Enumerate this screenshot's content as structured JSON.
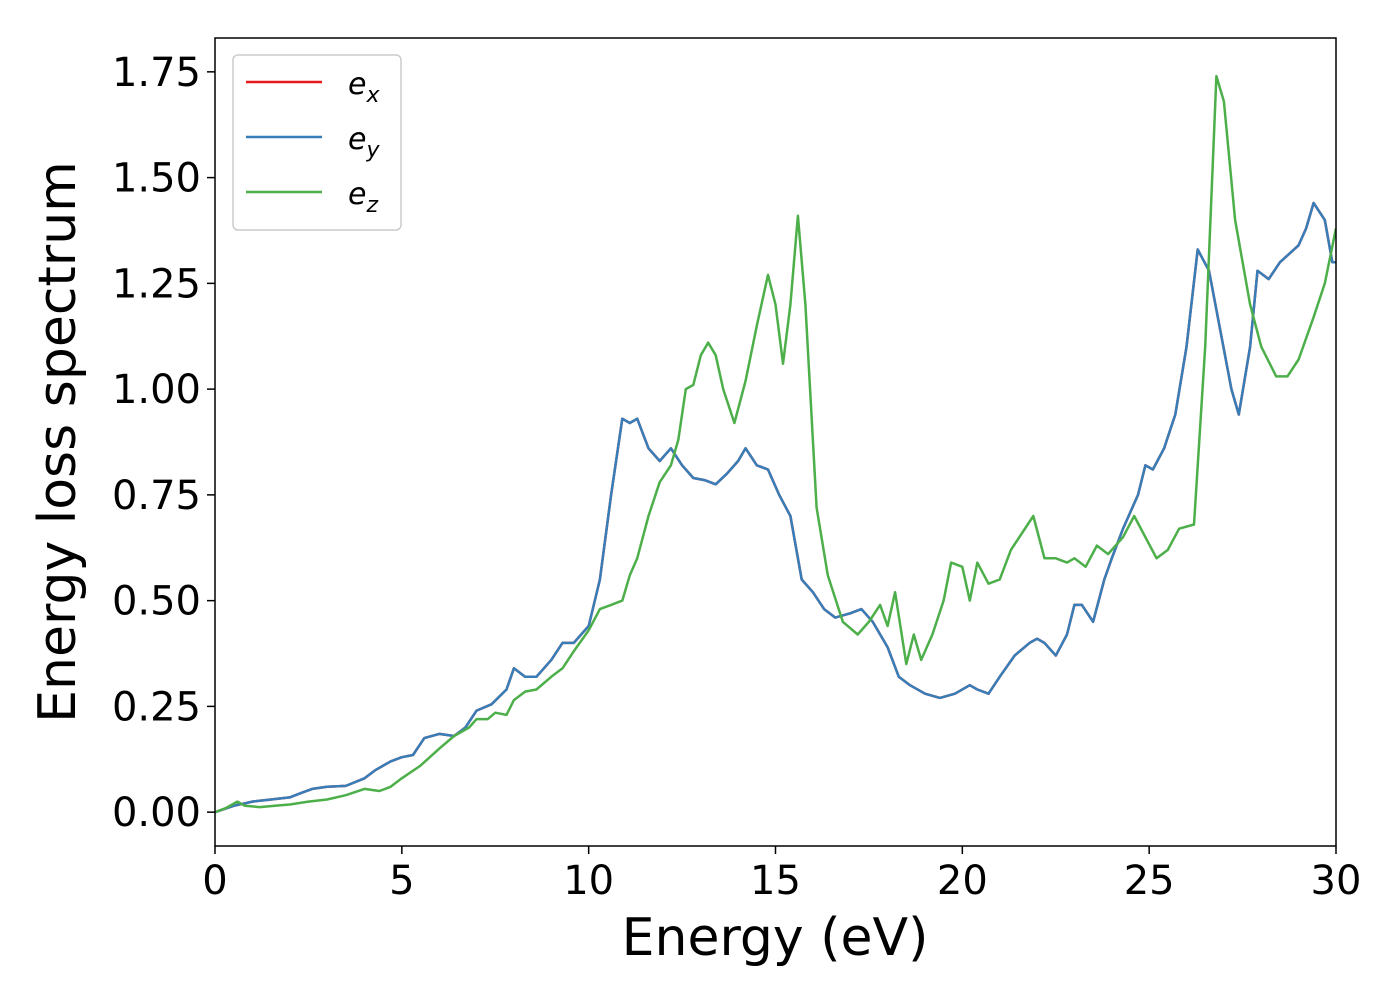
{
  "chart_data": {
    "type": "line",
    "xlabel": "Energy (eV)",
    "ylabel": "Energy loss spectrum",
    "xlim": [
      0,
      30
    ],
    "ylim": [
      -0.08,
      1.83
    ],
    "xticks": [
      0,
      5,
      10,
      15,
      20,
      25,
      30
    ],
    "yticks": [
      0.0,
      0.25,
      0.5,
      0.75,
      1.0,
      1.25,
      1.5,
      1.75
    ],
    "xtick_labels": [
      "0",
      "5",
      "10",
      "15",
      "20",
      "25",
      "30"
    ],
    "ytick_labels": [
      "0.00",
      "0.25",
      "0.50",
      "0.75",
      "1.00",
      "1.25",
      "1.50",
      "1.75"
    ],
    "grid": false,
    "legend": {
      "placement": "top-left",
      "entries": [
        {
          "base": "e",
          "sub": "x",
          "color": "#e41a1c"
        },
        {
          "base": "e",
          "sub": "y",
          "color": "#377eb8"
        },
        {
          "base": "e",
          "sub": "z",
          "color": "#4daf4a"
        }
      ]
    },
    "series": [
      {
        "name": "e_x",
        "color": "#e41a1c",
        "points": [
          [
            0,
            0
          ],
          [
            0.5,
            0.015
          ],
          [
            1,
            0.025
          ],
          [
            1.5,
            0.03
          ],
          [
            2,
            0.035
          ],
          [
            2.3,
            0.045
          ],
          [
            2.6,
            0.055
          ],
          [
            3,
            0.06
          ],
          [
            3.5,
            0.062
          ],
          [
            4,
            0.08
          ],
          [
            4.3,
            0.1
          ],
          [
            4.7,
            0.12
          ],
          [
            5,
            0.13
          ],
          [
            5.3,
            0.135
          ],
          [
            5.6,
            0.175
          ],
          [
            6,
            0.185
          ],
          [
            6.4,
            0.18
          ],
          [
            6.7,
            0.2
          ],
          [
            7,
            0.24
          ],
          [
            7.4,
            0.255
          ],
          [
            7.8,
            0.29
          ],
          [
            8,
            0.34
          ],
          [
            8.3,
            0.32
          ],
          [
            8.6,
            0.32
          ],
          [
            9,
            0.36
          ],
          [
            9.3,
            0.4
          ],
          [
            9.6,
            0.4
          ],
          [
            10,
            0.44
          ],
          [
            10.3,
            0.55
          ],
          [
            10.6,
            0.75
          ],
          [
            10.9,
            0.93
          ],
          [
            11.1,
            0.92
          ],
          [
            11.3,
            0.93
          ],
          [
            11.6,
            0.86
          ],
          [
            11.9,
            0.83
          ],
          [
            12.2,
            0.86
          ],
          [
            12.5,
            0.82
          ],
          [
            12.8,
            0.79
          ],
          [
            13.1,
            0.785
          ],
          [
            13.4,
            0.775
          ],
          [
            13.7,
            0.8
          ],
          [
            14,
            0.83
          ],
          [
            14.2,
            0.86
          ],
          [
            14.5,
            0.82
          ],
          [
            14.8,
            0.81
          ],
          [
            15.1,
            0.75
          ],
          [
            15.4,
            0.7
          ],
          [
            15.7,
            0.55
          ],
          [
            16,
            0.52
          ],
          [
            16.3,
            0.48
          ],
          [
            16.6,
            0.46
          ],
          [
            17,
            0.47
          ],
          [
            17.3,
            0.48
          ],
          [
            17.6,
            0.45
          ],
          [
            18,
            0.39
          ],
          [
            18.3,
            0.32
          ],
          [
            18.6,
            0.3
          ],
          [
            19,
            0.28
          ],
          [
            19.4,
            0.27
          ],
          [
            19.8,
            0.28
          ],
          [
            20.2,
            0.3
          ],
          [
            20.4,
            0.29
          ],
          [
            20.7,
            0.28
          ],
          [
            21,
            0.32
          ],
          [
            21.4,
            0.37
          ],
          [
            21.8,
            0.4
          ],
          [
            22,
            0.41
          ],
          [
            22.2,
            0.4
          ],
          [
            22.5,
            0.37
          ],
          [
            22.8,
            0.42
          ],
          [
            23,
            0.49
          ],
          [
            23.2,
            0.49
          ],
          [
            23.5,
            0.45
          ],
          [
            23.8,
            0.55
          ],
          [
            24,
            0.6
          ],
          [
            24.3,
            0.67
          ],
          [
            24.7,
            0.75
          ],
          [
            24.9,
            0.82
          ],
          [
            25.1,
            0.81
          ],
          [
            25.4,
            0.86
          ],
          [
            25.7,
            0.94
          ],
          [
            26,
            1.1
          ],
          [
            26.3,
            1.33
          ],
          [
            26.6,
            1.28
          ],
          [
            26.9,
            1.14
          ],
          [
            27.2,
            1.0
          ],
          [
            27.4,
            0.94
          ],
          [
            27.7,
            1.1
          ],
          [
            27.9,
            1.28
          ],
          [
            28.2,
            1.26
          ],
          [
            28.5,
            1.3
          ],
          [
            29,
            1.34
          ],
          [
            29.2,
            1.38
          ],
          [
            29.4,
            1.44
          ],
          [
            29.7,
            1.4
          ],
          [
            29.9,
            1.3
          ],
          [
            30,
            1.3
          ]
        ]
      },
      {
        "name": "e_y",
        "color": "#377eb8",
        "points": [
          [
            0,
            0
          ],
          [
            0.5,
            0.015
          ],
          [
            1,
            0.025
          ],
          [
            1.5,
            0.03
          ],
          [
            2,
            0.035
          ],
          [
            2.3,
            0.045
          ],
          [
            2.6,
            0.055
          ],
          [
            3,
            0.06
          ],
          [
            3.5,
            0.062
          ],
          [
            4,
            0.08
          ],
          [
            4.3,
            0.1
          ],
          [
            4.7,
            0.12
          ],
          [
            5,
            0.13
          ],
          [
            5.3,
            0.135
          ],
          [
            5.6,
            0.175
          ],
          [
            6,
            0.185
          ],
          [
            6.4,
            0.18
          ],
          [
            6.7,
            0.2
          ],
          [
            7,
            0.24
          ],
          [
            7.4,
            0.255
          ],
          [
            7.8,
            0.29
          ],
          [
            8,
            0.34
          ],
          [
            8.3,
            0.32
          ],
          [
            8.6,
            0.32
          ],
          [
            9,
            0.36
          ],
          [
            9.3,
            0.4
          ],
          [
            9.6,
            0.4
          ],
          [
            10,
            0.44
          ],
          [
            10.3,
            0.55
          ],
          [
            10.6,
            0.75
          ],
          [
            10.9,
            0.93
          ],
          [
            11.1,
            0.92
          ],
          [
            11.3,
            0.93
          ],
          [
            11.6,
            0.86
          ],
          [
            11.9,
            0.83
          ],
          [
            12.2,
            0.86
          ],
          [
            12.5,
            0.82
          ],
          [
            12.8,
            0.79
          ],
          [
            13.1,
            0.785
          ],
          [
            13.4,
            0.775
          ],
          [
            13.7,
            0.8
          ],
          [
            14,
            0.83
          ],
          [
            14.2,
            0.86
          ],
          [
            14.5,
            0.82
          ],
          [
            14.8,
            0.81
          ],
          [
            15.1,
            0.75
          ],
          [
            15.4,
            0.7
          ],
          [
            15.7,
            0.55
          ],
          [
            16,
            0.52
          ],
          [
            16.3,
            0.48
          ],
          [
            16.6,
            0.46
          ],
          [
            17,
            0.47
          ],
          [
            17.3,
            0.48
          ],
          [
            17.6,
            0.45
          ],
          [
            18,
            0.39
          ],
          [
            18.3,
            0.32
          ],
          [
            18.6,
            0.3
          ],
          [
            19,
            0.28
          ],
          [
            19.4,
            0.27
          ],
          [
            19.8,
            0.28
          ],
          [
            20.2,
            0.3
          ],
          [
            20.4,
            0.29
          ],
          [
            20.7,
            0.28
          ],
          [
            21,
            0.32
          ],
          [
            21.4,
            0.37
          ],
          [
            21.8,
            0.4
          ],
          [
            22,
            0.41
          ],
          [
            22.2,
            0.4
          ],
          [
            22.5,
            0.37
          ],
          [
            22.8,
            0.42
          ],
          [
            23,
            0.49
          ],
          [
            23.2,
            0.49
          ],
          [
            23.5,
            0.45
          ],
          [
            23.8,
            0.55
          ],
          [
            24,
            0.6
          ],
          [
            24.3,
            0.67
          ],
          [
            24.7,
            0.75
          ],
          [
            24.9,
            0.82
          ],
          [
            25.1,
            0.81
          ],
          [
            25.4,
            0.86
          ],
          [
            25.7,
            0.94
          ],
          [
            26,
            1.1
          ],
          [
            26.3,
            1.33
          ],
          [
            26.6,
            1.28
          ],
          [
            26.9,
            1.14
          ],
          [
            27.2,
            1.0
          ],
          [
            27.4,
            0.94
          ],
          [
            27.7,
            1.1
          ],
          [
            27.9,
            1.28
          ],
          [
            28.2,
            1.26
          ],
          [
            28.5,
            1.3
          ],
          [
            29,
            1.34
          ],
          [
            29.2,
            1.38
          ],
          [
            29.4,
            1.44
          ],
          [
            29.7,
            1.4
          ],
          [
            29.9,
            1.3
          ],
          [
            30,
            1.3
          ]
        ]
      },
      {
        "name": "e_z",
        "color": "#4daf4a",
        "points": [
          [
            0,
            0
          ],
          [
            0.3,
            0.01
          ],
          [
            0.6,
            0.025
          ],
          [
            0.8,
            0.015
          ],
          [
            1.2,
            0.012
          ],
          [
            1.6,
            0.015
          ],
          [
            2,
            0.018
          ],
          [
            2.5,
            0.025
          ],
          [
            3,
            0.03
          ],
          [
            3.5,
            0.04
          ],
          [
            4,
            0.055
          ],
          [
            4.4,
            0.05
          ],
          [
            4.7,
            0.06
          ],
          [
            5,
            0.08
          ],
          [
            5.5,
            0.11
          ],
          [
            6,
            0.15
          ],
          [
            6.4,
            0.18
          ],
          [
            6.8,
            0.2
          ],
          [
            7,
            0.22
          ],
          [
            7.3,
            0.22
          ],
          [
            7.5,
            0.235
          ],
          [
            7.8,
            0.23
          ],
          [
            8,
            0.265
          ],
          [
            8.3,
            0.285
          ],
          [
            8.6,
            0.29
          ],
          [
            9,
            0.32
          ],
          [
            9.3,
            0.34
          ],
          [
            9.6,
            0.38
          ],
          [
            10,
            0.43
          ],
          [
            10.3,
            0.48
          ],
          [
            10.6,
            0.49
          ],
          [
            10.9,
            0.5
          ],
          [
            11.1,
            0.56
          ],
          [
            11.3,
            0.6
          ],
          [
            11.6,
            0.7
          ],
          [
            11.9,
            0.78
          ],
          [
            12.2,
            0.82
          ],
          [
            12.4,
            0.88
          ],
          [
            12.6,
            1.0
          ],
          [
            12.8,
            1.01
          ],
          [
            13,
            1.08
          ],
          [
            13.2,
            1.11
          ],
          [
            13.4,
            1.08
          ],
          [
            13.6,
            1.0
          ],
          [
            13.9,
            0.92
          ],
          [
            14.2,
            1.02
          ],
          [
            14.5,
            1.15
          ],
          [
            14.8,
            1.27
          ],
          [
            15,
            1.2
          ],
          [
            15.2,
            1.06
          ],
          [
            15.4,
            1.2
          ],
          [
            15.6,
            1.41
          ],
          [
            15.8,
            1.2
          ],
          [
            16.1,
            0.72
          ],
          [
            16.4,
            0.56
          ],
          [
            16.8,
            0.45
          ],
          [
            17.2,
            0.42
          ],
          [
            17.5,
            0.45
          ],
          [
            17.8,
            0.49
          ],
          [
            18,
            0.44
          ],
          [
            18.2,
            0.52
          ],
          [
            18.5,
            0.35
          ],
          [
            18.7,
            0.42
          ],
          [
            18.9,
            0.36
          ],
          [
            19.2,
            0.42
          ],
          [
            19.5,
            0.5
          ],
          [
            19.7,
            0.59
          ],
          [
            20,
            0.58
          ],
          [
            20.2,
            0.5
          ],
          [
            20.4,
            0.59
          ],
          [
            20.7,
            0.54
          ],
          [
            21,
            0.55
          ],
          [
            21.3,
            0.62
          ],
          [
            21.6,
            0.66
          ],
          [
            21.9,
            0.7
          ],
          [
            22.2,
            0.6
          ],
          [
            22.5,
            0.6
          ],
          [
            22.8,
            0.59
          ],
          [
            23,
            0.6
          ],
          [
            23.3,
            0.58
          ],
          [
            23.6,
            0.63
          ],
          [
            23.9,
            0.61
          ],
          [
            24.3,
            0.65
          ],
          [
            24.6,
            0.7
          ],
          [
            24.9,
            0.65
          ],
          [
            25.2,
            0.6
          ],
          [
            25.5,
            0.62
          ],
          [
            25.8,
            0.67
          ],
          [
            26.2,
            0.68
          ],
          [
            26.5,
            1.1
          ],
          [
            26.8,
            1.74
          ],
          [
            27,
            1.68
          ],
          [
            27.3,
            1.4
          ],
          [
            27.7,
            1.2
          ],
          [
            28,
            1.1
          ],
          [
            28.4,
            1.03
          ],
          [
            28.7,
            1.03
          ],
          [
            29,
            1.07
          ],
          [
            29.4,
            1.17
          ],
          [
            29.7,
            1.25
          ],
          [
            30,
            1.38
          ]
        ]
      }
    ]
  }
}
